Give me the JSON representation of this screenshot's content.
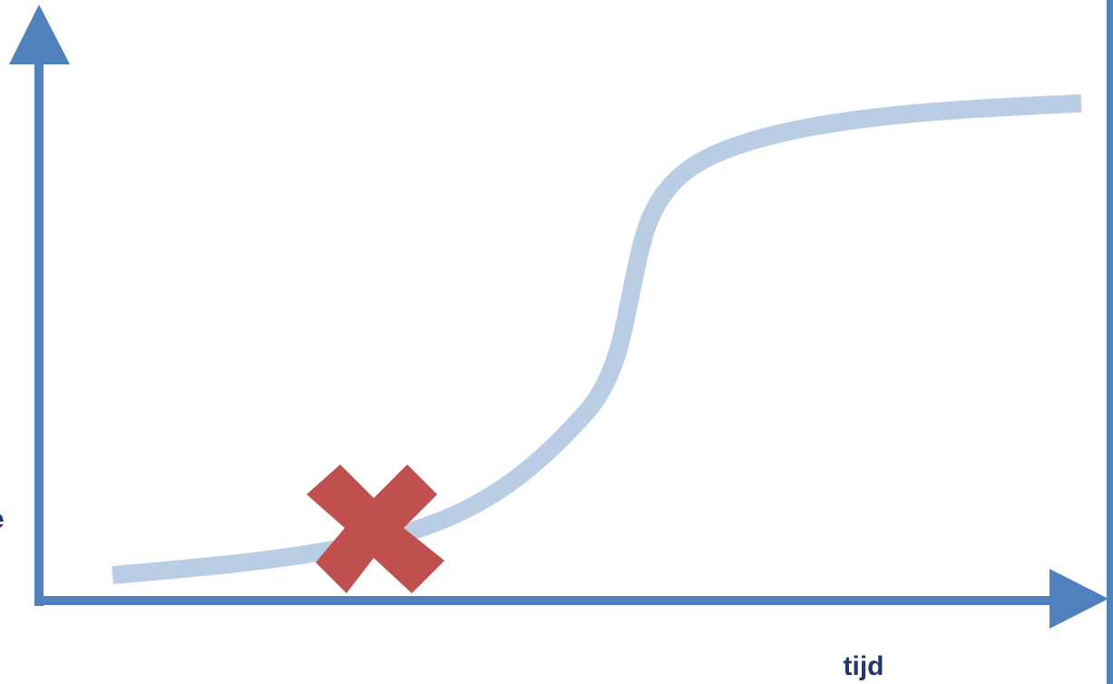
{
  "diagram": {
    "x_axis_label": "tijd",
    "y_axis_label_fragment": "e"
  },
  "colors": {
    "axis": "#4f81bd",
    "curve": "#b9cde5",
    "marker": "#c0504d",
    "label": "#1f3864",
    "frame": "#4f81bd"
  },
  "icons": {
    "marker": "cross-icon",
    "x_arrow": "arrow-right-icon",
    "y_arrow": "arrow-up-icon"
  }
}
